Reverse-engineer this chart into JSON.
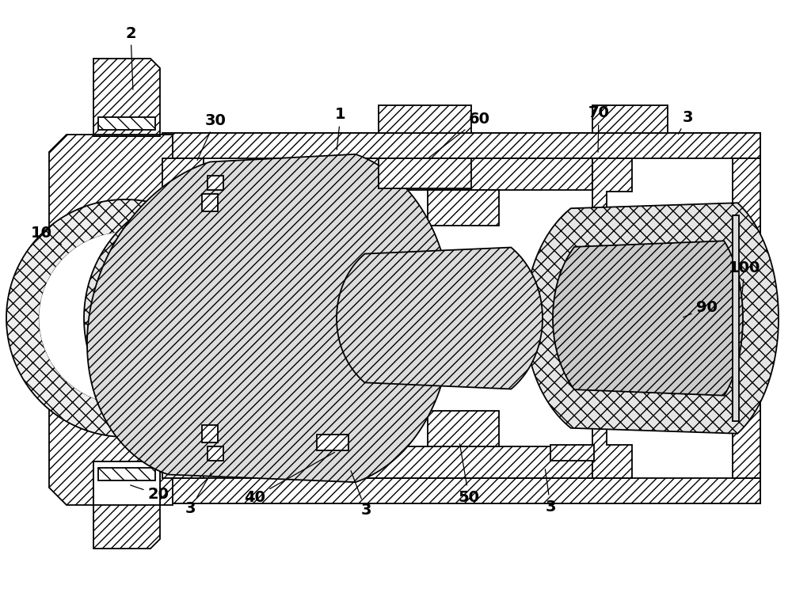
{
  "background_color": "#ffffff",
  "line_color": "#000000",
  "figsize": [
    10.0,
    7.58
  ],
  "dpi": 100,
  "label_fontsize": 14,
  "lw": 1.3
}
